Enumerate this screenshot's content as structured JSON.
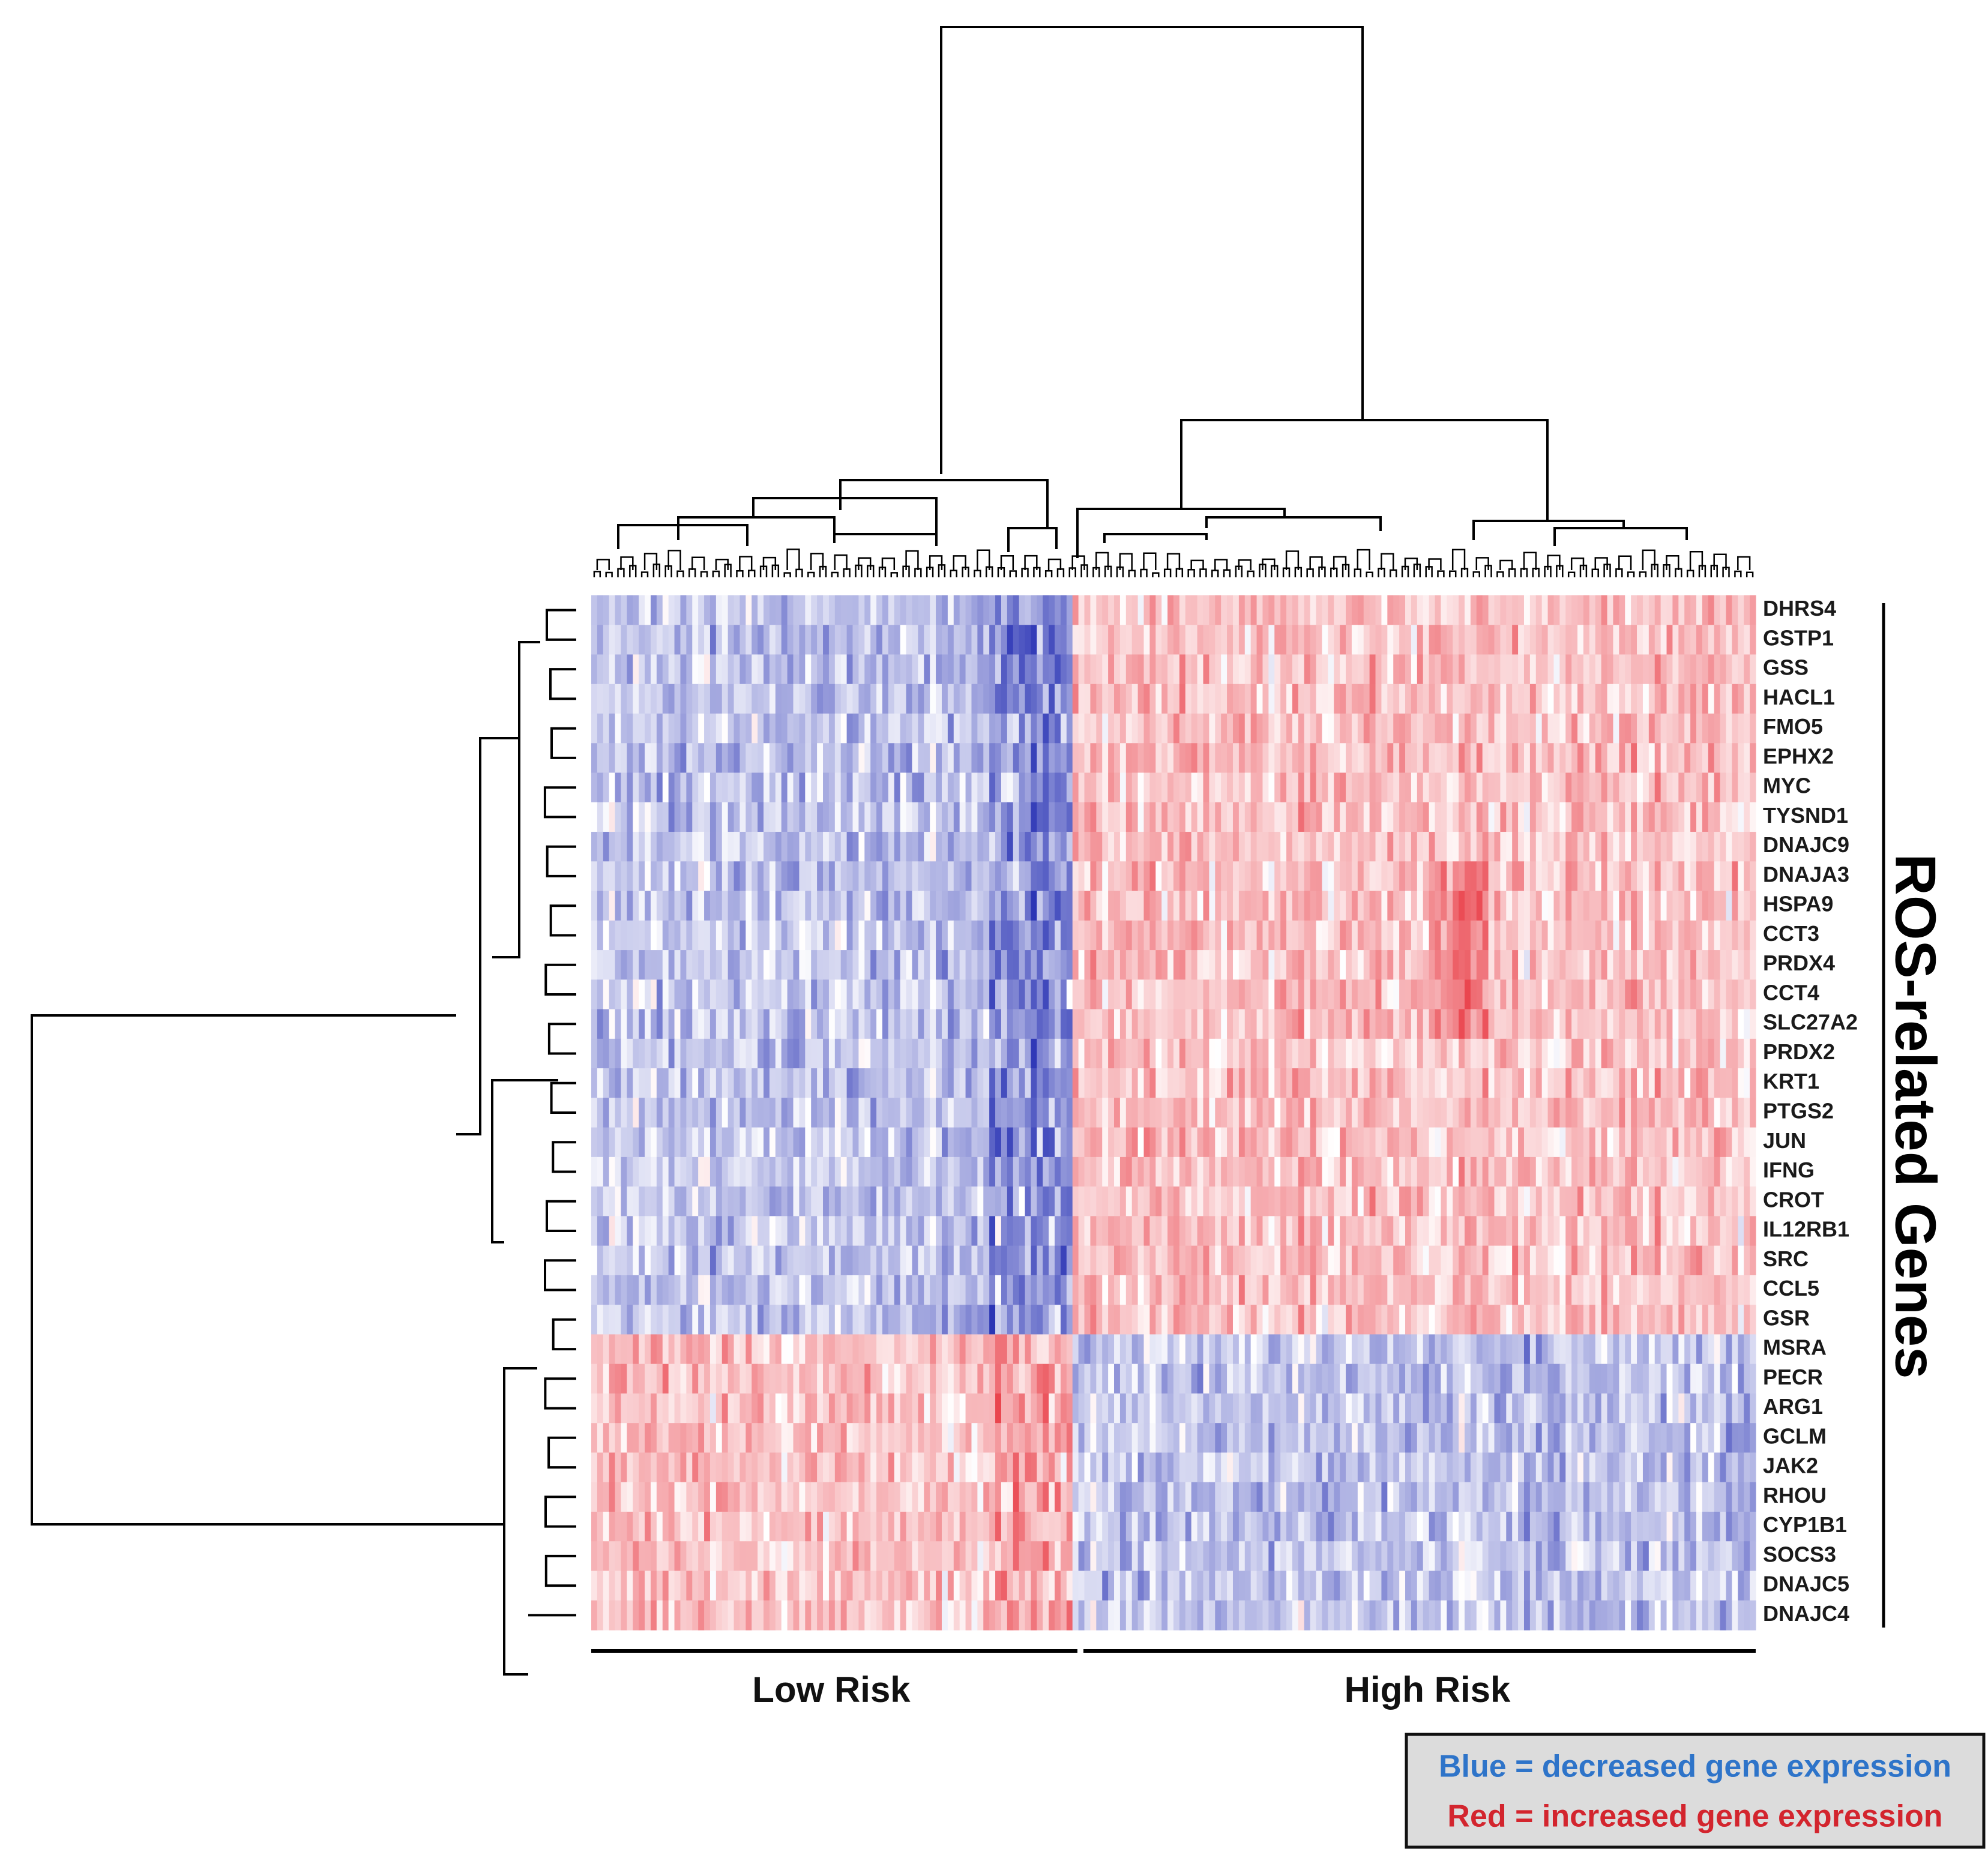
{
  "chart_data": {
    "type": "heatmap",
    "title": "",
    "row_axis_title": "ROS-related Genes",
    "rows": [
      "DHRS4",
      "GSTP1",
      "GSS",
      "HACL1",
      "FMO5",
      "EPHX2",
      "MYC",
      "TYSND1",
      "DNAJC9",
      "DNAJA3",
      "HSPA9",
      "CCT3",
      "PRDX4",
      "CCT4",
      "SLC27A2",
      "PRDX2",
      "KRT1",
      "PTGS2",
      "JUN",
      "IFNG",
      "CROT",
      "IL12RB1",
      "SRC",
      "CCL5",
      "GSR",
      "MSRA",
      "PECR",
      "ARG1",
      "GCLM",
      "JAK2",
      "RHOU",
      "CYP1B1",
      "SOCS3",
      "DNAJC5",
      "DNAJC4"
    ],
    "column_groups": [
      {
        "name": "Low Risk",
        "sample_fraction": 0.415
      },
      {
        "name": "High Risk",
        "sample_fraction": 0.585
      }
    ],
    "gene_clusters": [
      {
        "genes": [
          "DHRS4",
          "GSTP1",
          "GSS",
          "HACL1",
          "FMO5",
          "EPHX2",
          "MYC",
          "TYSND1",
          "DNAJC9",
          "DNAJA3",
          "HSPA9",
          "CCT3",
          "PRDX4",
          "CCT4",
          "SLC27A2",
          "PRDX2",
          "KRT1",
          "PTGS2",
          "JUN",
          "IFNG",
          "CROT",
          "IL12RB1",
          "SRC",
          "CCL5",
          "GSR"
        ],
        "Low Risk": "decreased",
        "High Risk": "increased"
      },
      {
        "genes": [
          "MSRA",
          "PECR",
          "ARG1",
          "GCLM",
          "JAK2",
          "RHOU",
          "CYP1B1",
          "SOCS3",
          "DNAJC5",
          "DNAJC4"
        ],
        "Low Risk": "increased",
        "High Risk": "decreased"
      }
    ],
    "color_scale": {
      "low": "#2b35b5",
      "mid": "#ffffff",
      "high": "#e8323c"
    },
    "dendrograms": {
      "columns": true,
      "rows": true
    }
  },
  "legend": {
    "blue_text": "Blue = decreased gene expression",
    "red_text": "Red = increased gene expression",
    "blue_color": "#2e74c9",
    "red_color": "#d3252e"
  }
}
